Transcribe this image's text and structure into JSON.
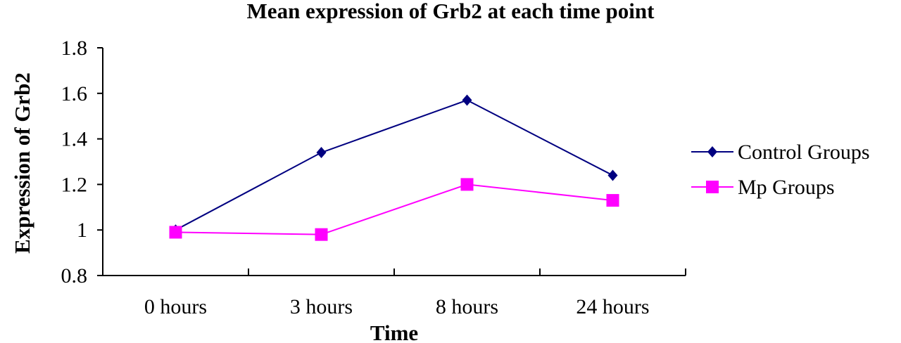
{
  "chart_data": {
    "type": "line",
    "title": "Mean expression of Grb2 at each time point",
    "xlabel": "Time",
    "ylabel": "Expression of Grb2",
    "categories": [
      "0 hours",
      "3 hours",
      "8 hours",
      "24 hours"
    ],
    "ylim": [
      0.8,
      1.8
    ],
    "yticks": [
      "0.8",
      "1",
      "1.2",
      "1.4",
      "1.6",
      "1.8"
    ],
    "grid": false,
    "legend_position": "right",
    "series": [
      {
        "name": "Control Groups",
        "values": [
          1.0,
          1.34,
          1.57,
          1.24
        ],
        "color": "#000080",
        "marker": "diamond"
      },
      {
        "name": "Mp Groups",
        "values": [
          0.99,
          0.98,
          1.2,
          1.13
        ],
        "color": "#FF00FF",
        "marker": "square"
      }
    ]
  }
}
